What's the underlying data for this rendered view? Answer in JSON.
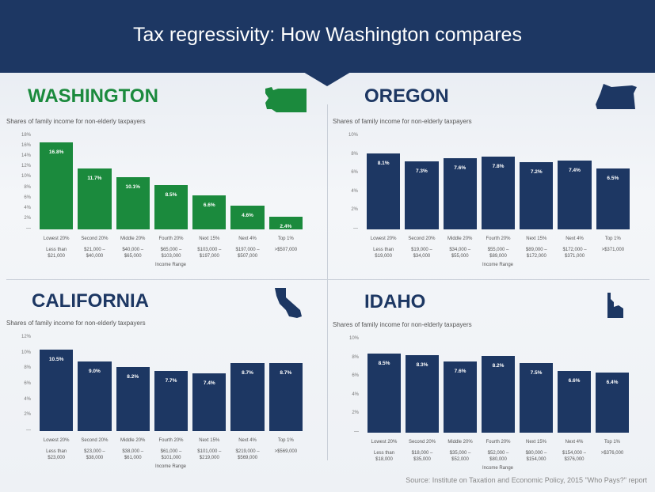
{
  "title": "Tax regressivity: How Washington compares",
  "source": "Source: Institute on Taxation and Economic Policy, 2015 \"Who Pays?\" report",
  "colors": {
    "header": "#1d3763",
    "washington": "#1b8a3d",
    "other": "#1d3763"
  },
  "chart_data": [
    {
      "type": "bar",
      "state": "WASHINGTON",
      "title": "Shares of family income for non-elderly taxpayers",
      "xlabel": "Income Range",
      "ylim": [
        0,
        18
      ],
      "yticks": [
        "18%",
        "16%",
        "14%",
        "12%",
        "10%",
        "8%",
        "6%",
        "4%",
        "2%",
        "—"
      ],
      "categories": [
        "Lowest 20%",
        "Second 20%",
        "Middle 20%",
        "Fourth 20%",
        "Next 15%",
        "Next 4%",
        "Top 1%"
      ],
      "ranges": [
        "Less than $21,000",
        "$21,000 – $40,000",
        "$40,000 – $65,000",
        "$65,000 – $103,000",
        "$103,000 – $197,000",
        "$197,000 – $507,000",
        ">$507,000"
      ],
      "values": [
        16.8,
        11.7,
        10.1,
        8.5,
        6.6,
        4.6,
        2.4
      ],
      "labels": [
        "16.8%",
        "11.7%",
        "10.1%",
        "8.5%",
        "6.6%",
        "4.6%",
        "2.4%"
      ]
    },
    {
      "type": "bar",
      "state": "OREGON",
      "title": "Shares of family income for non-elderly taxpayers",
      "xlabel": "Income Range",
      "ylim": [
        0,
        10
      ],
      "yticks": [
        "10%",
        "8%",
        "6%",
        "4%",
        "2%",
        "—"
      ],
      "categories": [
        "Lowest 20%",
        "Second 20%",
        "Middle 20%",
        "Fourth 20%",
        "Next 15%",
        "Next 4%",
        "Top 1%"
      ],
      "ranges": [
        "Less than $19,000",
        "$19,000 – $34,000",
        "$34,000 – $55,000",
        "$55,000 – $89,000",
        "$89,000 – $172,000",
        "$172,000 – $371,000",
        ">$371,000"
      ],
      "values": [
        8.1,
        7.3,
        7.6,
        7.8,
        7.2,
        7.4,
        6.5
      ],
      "labels": [
        "8.1%",
        "7.3%",
        "7.6%",
        "7.8%",
        "7.2%",
        "7.4%",
        "6.5%"
      ]
    },
    {
      "type": "bar",
      "state": "CALIFORNIA",
      "title": "Shares of family income for non-elderly taxpayers",
      "xlabel": "Income Range",
      "ylim": [
        0,
        12
      ],
      "yticks": [
        "12%",
        "10%",
        "8%",
        "6%",
        "4%",
        "2%",
        "—"
      ],
      "categories": [
        "Lowest 20%",
        "Second 20%",
        "Middle 20%",
        "Fourth 20%",
        "Next 15%",
        "Next 4%",
        "Top 1%"
      ],
      "ranges": [
        "Less than $23,000",
        "$23,000 – $38,000",
        "$38,000 – $61,000",
        "$61,000 – $101,000",
        "$101,000 – $219,000",
        "$219,000 – $569,000",
        ">$569,000"
      ],
      "values": [
        10.5,
        9.0,
        8.2,
        7.7,
        7.4,
        8.7,
        8.7
      ],
      "labels": [
        "10.5%",
        "9.0%",
        "8.2%",
        "7.7%",
        "7.4%",
        "8.7%",
        "8.7%"
      ]
    },
    {
      "type": "bar",
      "state": "IDAHO",
      "title": "Shares of family income for non-elderly taxpayers",
      "xlabel": "Income Range",
      "ylim": [
        0,
        10
      ],
      "yticks": [
        "10%",
        "8%",
        "6%",
        "4%",
        "2%",
        "—"
      ],
      "categories": [
        "Lowest 20%",
        "Second 20%",
        "Middle 20%",
        "Fourth 20%",
        "Next 15%",
        "Next 4%",
        "Top 1%"
      ],
      "ranges": [
        "Less than $18,000",
        "$18,000 – $35,000",
        "$35,000 – $52,000",
        "$52,000 – $80,000",
        "$80,000 – $154,000",
        "$154,000 – $376,000",
        ">$376,000"
      ],
      "values": [
        8.5,
        8.3,
        7.6,
        8.2,
        7.5,
        6.6,
        6.4
      ],
      "labels": [
        "8.5%",
        "8.3%",
        "7.6%",
        "8.2%",
        "7.5%",
        "6.6%",
        "6.4%"
      ]
    }
  ]
}
